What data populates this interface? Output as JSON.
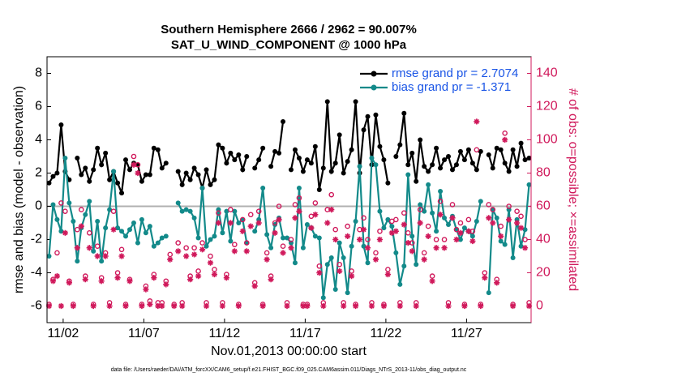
{
  "chart_data": {
    "type": "line",
    "title": "Southern Hemisphere 2666 / 2962 = 90.007%",
    "subtitle": "SAT_U_WIND_COMPONENT @ 1000 hPa",
    "xlabel": "Nov.01,2013 00:00:00 start",
    "ylabel": "rmse and bias (model - observation)",
    "y2label": "# of obs: o=possible; ×=assimilated",
    "footnote": "data file: /Users/raeder/DAI/ATM_forcXX/CAM6_setup/f.e21.FHIST_BGC.f09_025.CAM6assim.011/Diags_NTrS_2013-11/obs_diag_output.nc",
    "xlim": [
      0,
      30
    ],
    "xticks": [
      {
        "value": 1,
        "label": "11/02"
      },
      {
        "value": 6,
        "label": "11/07"
      },
      {
        "value": 11,
        "label": "11/12"
      },
      {
        "value": 16,
        "label": "11/17"
      },
      {
        "value": 21,
        "label": "11/22"
      },
      {
        "value": 26,
        "label": "11/27"
      }
    ],
    "ylim": [
      -7,
      9
    ],
    "yticks": [
      -6,
      -4,
      -2,
      0,
      2,
      4,
      6,
      8
    ],
    "y2lim": [
      -10,
      150
    ],
    "y2ticks": [
      0,
      20,
      40,
      60,
      80,
      100,
      120,
      140
    ],
    "y2color": "#d0195b",
    "reference_line": 0,
    "legend": "upper right",
    "x": [
      0.125,
      0.375,
      0.625,
      0.875,
      1.125,
      1.375,
      1.625,
      1.875,
      2.125,
      2.375,
      2.625,
      2.875,
      3.125,
      3.375,
      3.625,
      3.875,
      4.125,
      4.375,
      4.625,
      4.875,
      5.125,
      5.375,
      5.625,
      5.875,
      6.125,
      6.375,
      6.625,
      6.875,
      7.125,
      7.375,
      7.625,
      7.875,
      8.125,
      8.375,
      8.625,
      8.875,
      9.125,
      9.375,
      9.625,
      9.875,
      10.125,
      10.375,
      10.625,
      10.875,
      11.125,
      11.375,
      11.625,
      11.875,
      12.125,
      12.375,
      12.625,
      12.875,
      13.125,
      13.375,
      13.625,
      13.875,
      14.125,
      14.375,
      14.625,
      14.875,
      15.125,
      15.375,
      15.625,
      15.875,
      16.125,
      16.375,
      16.625,
      16.875,
      17.125,
      17.375,
      17.625,
      17.875,
      18.125,
      18.375,
      18.625,
      18.875,
      19.125,
      19.375,
      19.625,
      19.875,
      20.125,
      20.375,
      20.625,
      20.875,
      21.125,
      21.375,
      21.625,
      21.875,
      22.125,
      22.375,
      22.625,
      22.875,
      23.125,
      23.375,
      23.625,
      23.875,
      24.125,
      24.375,
      24.625,
      24.875,
      25.125,
      25.375,
      25.625,
      25.875,
      26.125,
      26.375,
      26.625,
      26.875,
      27.125,
      27.375,
      27.625,
      27.875,
      28.125,
      28.375,
      28.625,
      28.875,
      29.125,
      29.375,
      29.625,
      29.875
    ],
    "series": [
      {
        "name": "rmse grand pr = 2.7074",
        "color": "#000000",
        "marker": "dot",
        "line": true,
        "values": [
          1.4,
          1.8,
          2.0,
          4.9,
          2.1,
          1.6,
          null,
          2.9,
          1.9,
          2.3,
          1.5,
          2.2,
          3.5,
          2.5,
          3.2,
          1.6,
          2.1,
          1.4,
          0.8,
          2.8,
          2.2,
          2.6,
          2.5,
          1.5,
          1.9,
          1.9,
          3.5,
          3.4,
          2.3,
          2.6,
          null,
          null,
          2.1,
          1.3,
          2.0,
          1.6,
          2.3,
          1.9,
          1.1,
          2.2,
          1.3,
          1.6,
          3.7,
          3.5,
          2.6,
          3.2,
          2.8,
          3.1,
          2.2,
          3.0,
          null,
          2.3,
          2.8,
          3.5,
          null,
          2.4,
          3.3,
          3.2,
          5.1,
          null,
          2.2,
          3.4,
          2.9,
          2.1,
          2.8,
          2.6,
          3.6,
          1.0,
          2.3,
          6.3,
          2.1,
          2.6,
          4.3,
          2.0,
          2.7,
          3.4,
          6.3,
          2.0,
          4.6,
          5.4,
          2.5,
          5.5,
          3.6,
          2.8,
          1.4,
          null,
          3.0,
          3.7,
          5.6,
          2.5,
          3.2,
          1.5,
          4.0,
          2.4,
          2.1,
          2.5,
          3.5,
          2.3,
          2.8,
          3.0,
          2.2,
          2.5,
          3.3,
          2.8,
          3.4,
          2.6,
          2.2,
          3.3,
          null,
          3.1,
          2.3,
          3.5,
          3.4,
          2.6,
          2.1,
          3.4,
          2.4,
          3.8,
          2.8,
          2.9
        ]
      },
      {
        "name": "bias grand pr = -1.371",
        "color": "#138a8a",
        "marker": "dot",
        "line": true,
        "values": [
          -3.0,
          0.1,
          -0.8,
          -1.5,
          2.9,
          0.2,
          -0.9,
          -3.3,
          -1.3,
          -0.5,
          0.3,
          -2.7,
          -0.9,
          -3.3,
          -1.3,
          -0.2,
          2.1,
          -1.3,
          -1.5,
          -1.8,
          -1.4,
          -1.0,
          -2.2,
          -0.8,
          -1.6,
          -1.2,
          -2.4,
          -2.2,
          -1.9,
          -1.8,
          null,
          null,
          0.2,
          -0.3,
          -0.2,
          -0.3,
          -0.7,
          -1.9,
          1.1,
          -2.4,
          -2.0,
          -1.8,
          -0.2,
          -1.6,
          -0.3,
          -2.1,
          -0.3,
          -1.0,
          -0.8,
          -2.2,
          null,
          -1.5,
          -0.8,
          1.1,
          -1.7,
          -2.5,
          -1.1,
          -0.7,
          -1.9,
          -1.9,
          -2.2,
          -3.4,
          1.1,
          -2.5,
          -1.1,
          -1.3,
          -1.8,
          -1.9,
          -5.5,
          -3.5,
          -3.1,
          -5.0,
          -2.2,
          -3.1,
          -5.2,
          -2.4,
          -0.9,
          2.4,
          -2.4,
          -3.4,
          2.9,
          2.5,
          -0.3,
          -1.3,
          -0.8,
          -1.2,
          -2.8,
          -4.7,
          -3.6,
          1.9,
          -1.8,
          -3.5,
          0.1,
          -0.3,
          1.3,
          -0.4,
          -1.5,
          0.9,
          -0.7,
          -1.1,
          -0.6,
          -1.4,
          -2.0,
          -1.3,
          -1.5,
          -1.8,
          -0.9,
          0.3,
          null,
          -5.2,
          -0.2,
          -0.7,
          -2.1,
          -2.3,
          -0.2,
          -3.1,
          -0.8,
          -2.4,
          -1.4,
          1.3
        ]
      },
      {
        "color": "#d0195b",
        "marker": "circle",
        "line": false,
        "axis": "y2",
        "values": [
          1,
          16,
          32,
          62,
          57,
          15,
          1,
          46,
          58,
          18,
          44,
          1,
          36,
          17,
          32,
          2,
          57,
          20,
          34,
          1,
          16,
          90,
          85,
          1,
          12,
          3,
          19,
          2,
          2,
          15,
          31,
          1,
          38,
          2,
          35,
          18,
          35,
          21,
          38,
          2,
          30,
          22,
          56,
          2,
          19,
          58,
          37,
          1,
          52,
          38,
          55,
          14,
          57,
          1,
          32,
          18,
          50,
          60,
          36,
          2,
          40,
          61,
          65,
          1,
          1,
          54,
          62,
          24,
          2,
          58,
          67,
          46,
          25,
          2,
          48,
          21,
          1,
          46,
          53,
          40,
          2,
          32,
          45,
          1,
          22,
          51,
          52,
          2,
          56,
          44,
          38,
          2,
          58,
          32,
          48,
          18,
          40,
          63,
          40,
          2,
          61,
          46,
          50,
          1,
          52,
          45,
          94,
          1,
          20,
          61,
          58,
          16,
          48,
          104,
          60,
          1,
          57,
          54,
          40,
          2
        ]
      },
      {
        "color": "#d0195b",
        "marker": "asterisk",
        "line": false,
        "axis": "y2",
        "values": [
          0,
          15,
          18,
          0,
          44,
          14,
          0,
          35,
          48,
          16,
          35,
          0,
          30,
          15,
          30,
          0,
          46,
          17,
          30,
          0,
          15,
          85,
          80,
          0,
          10,
          1,
          17,
          0,
          0,
          13,
          28,
          0,
          33,
          0,
          30,
          16,
          31,
          18,
          34,
          0,
          26,
          19,
          50,
          0,
          17,
          50,
          33,
          0,
          45,
          33,
          48,
          12,
          50,
          0,
          28,
          16,
          44,
          52,
          32,
          0,
          35,
          53,
          57,
          0,
          0,
          47,
          55,
          20,
          0,
          50,
          58,
          40,
          21,
          0,
          42,
          18,
          0,
          40,
          46,
          35,
          0,
          28,
          40,
          0,
          19,
          44,
          45,
          0,
          49,
          38,
          33,
          0,
          50,
          28,
          42,
          15,
          35,
          55,
          35,
          0,
          53,
          40,
          44,
          0,
          45,
          39,
          111,
          0,
          17,
          53,
          50,
          14,
          42,
          100,
          52,
          0,
          50,
          47,
          35,
          0
        ]
      }
    ]
  }
}
